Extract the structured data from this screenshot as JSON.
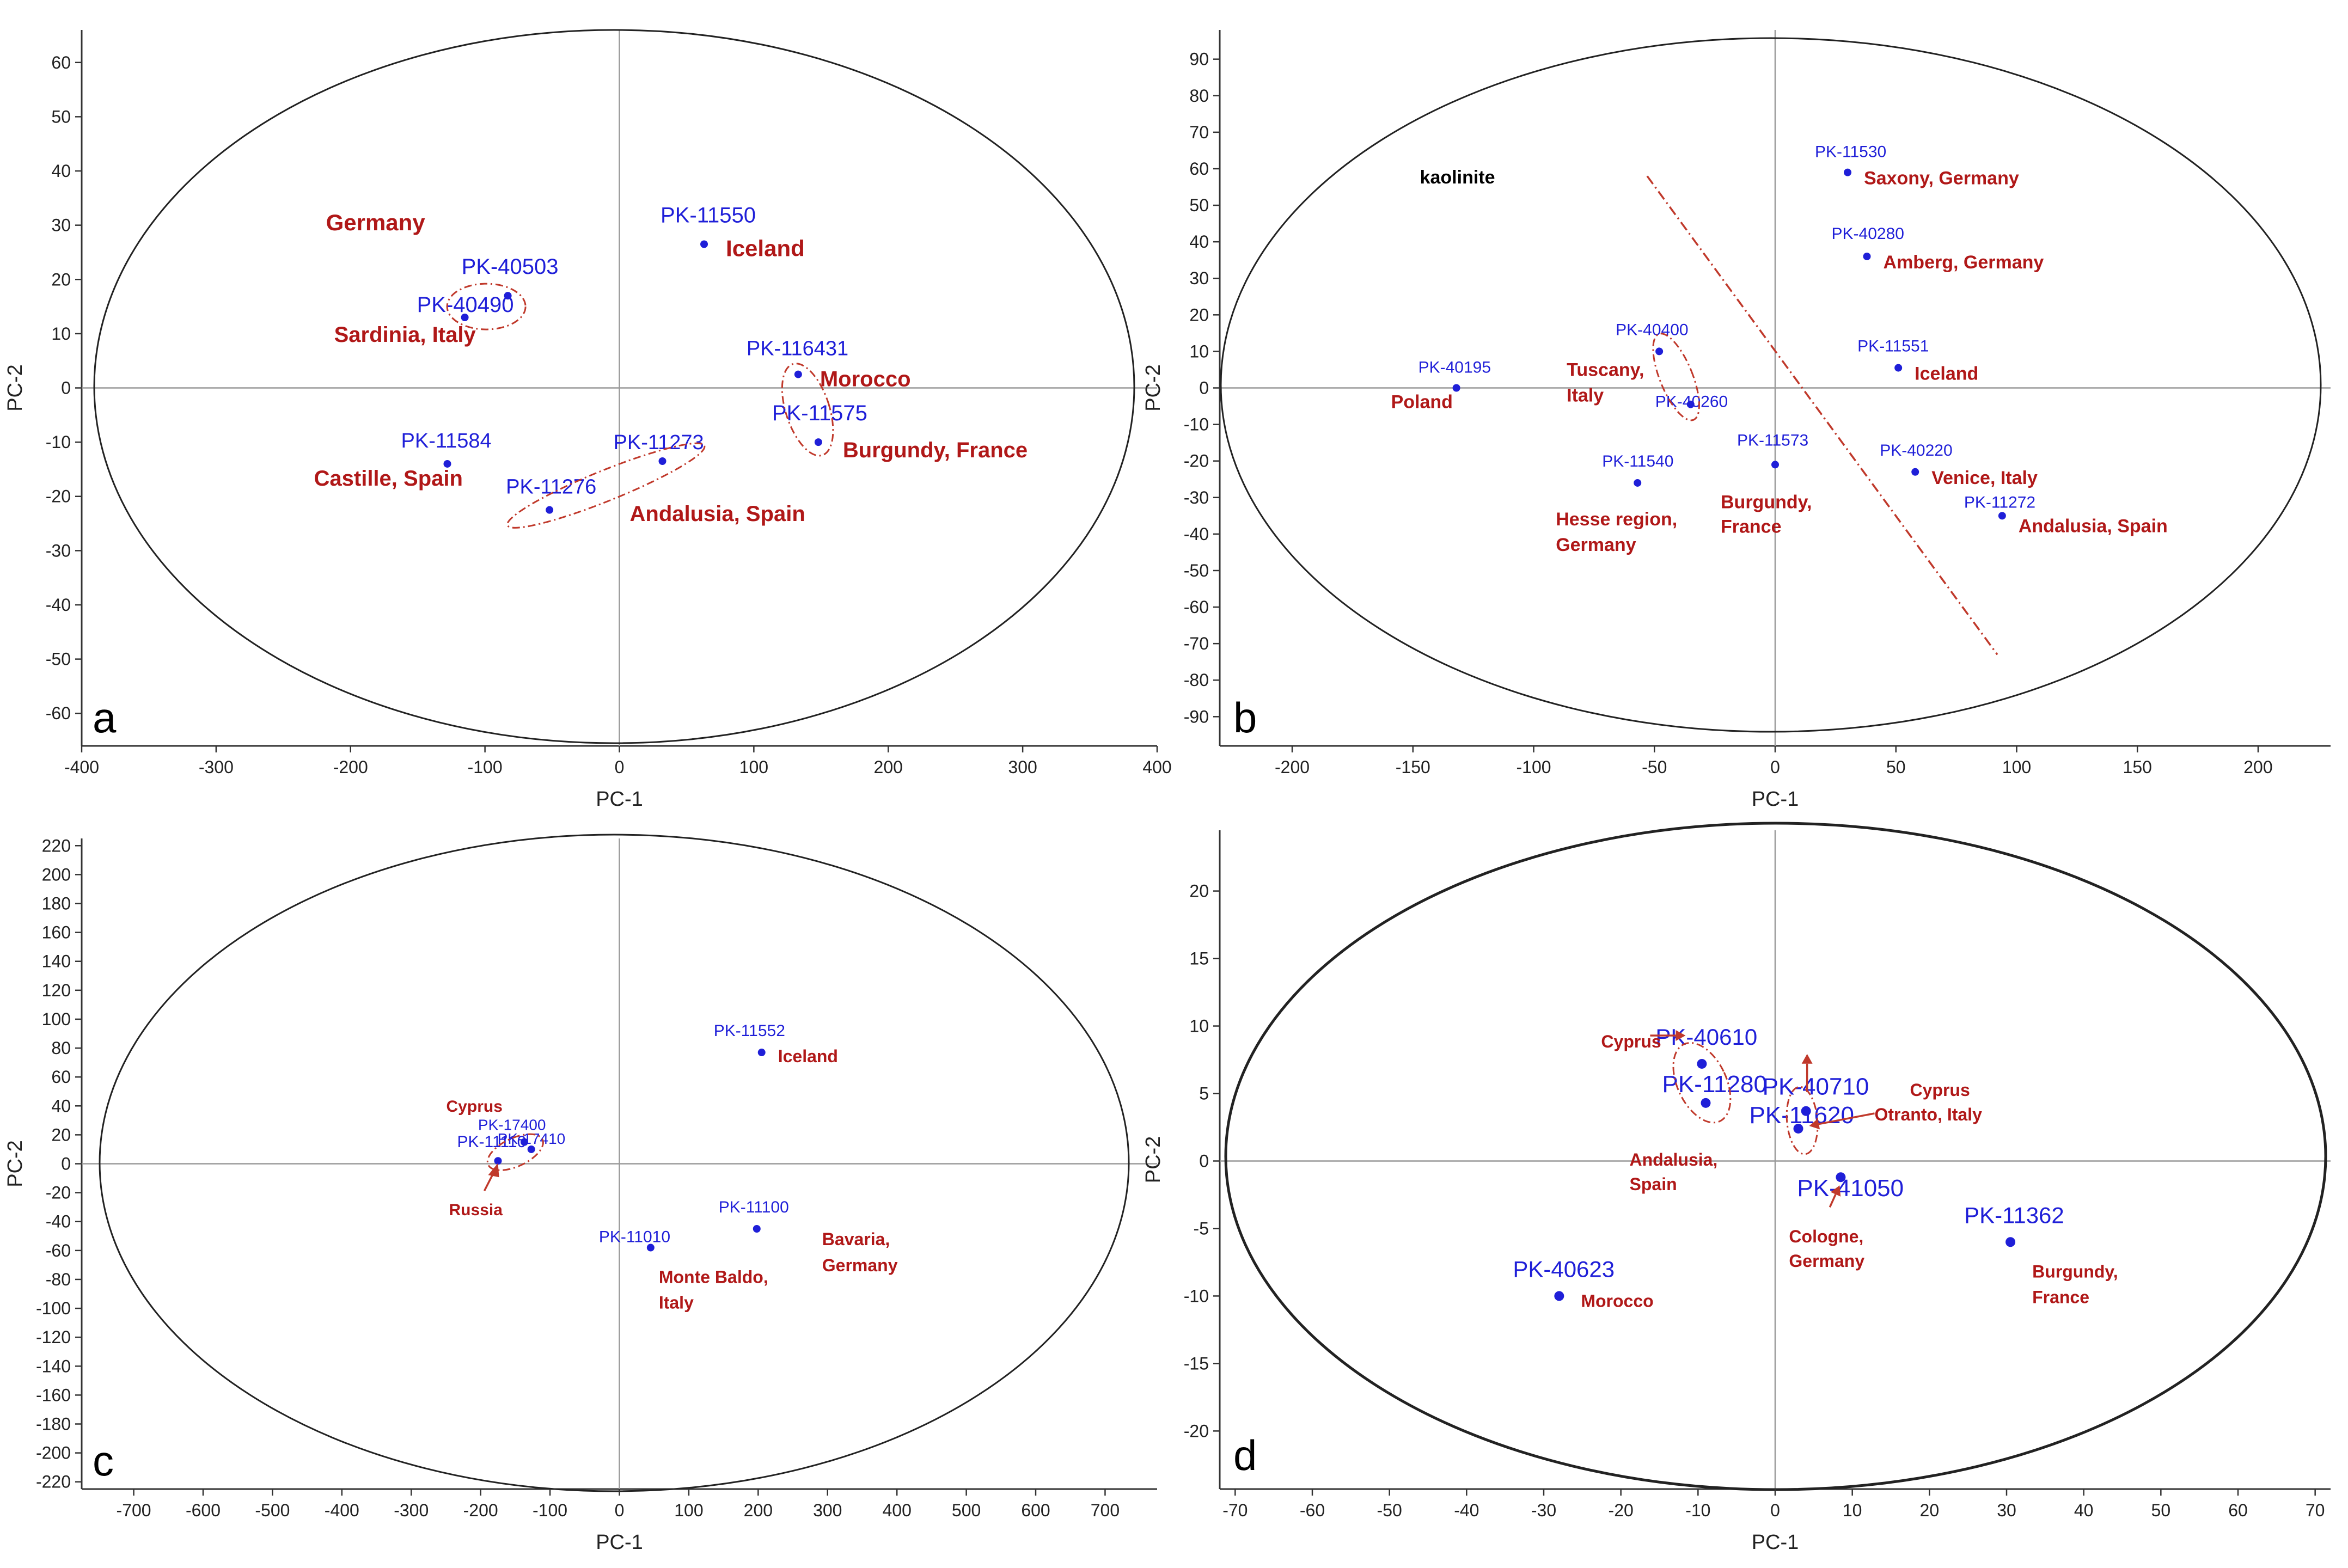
{
  "colors": {
    "sample": "#1f1fd8",
    "region": "#b01818",
    "axis": "#333333",
    "zero_line": "#9a9a9a",
    "ellipse": "#222222",
    "group": "#c0392b"
  },
  "chart_data": [
    {
      "panel": "a",
      "type": "scatter",
      "xlabel": "PC-1",
      "ylabel": "PC-2",
      "xlim": [
        -400,
        400
      ],
      "ylim": [
        -66,
        66
      ],
      "xticks": [
        -400,
        -300,
        -200,
        -100,
        0,
        100,
        200,
        300,
        400
      ],
      "yticks": [
        -60,
        -50,
        -40,
        -30,
        -20,
        -10,
        0,
        10,
        20,
        30,
        40,
        50,
        60
      ],
      "points": [
        {
          "id": "PK-11550",
          "x": 63,
          "y": 26.5
        },
        {
          "id": "PK-40503",
          "x": -83,
          "y": 17
        },
        {
          "id": "PK-40490",
          "x": -115,
          "y": 13
        },
        {
          "id": "PK-116431",
          "x": 133,
          "y": 2.5
        },
        {
          "id": "PK-11575",
          "x": 148,
          "y": -10
        },
        {
          "id": "PK-11584",
          "x": -128,
          "y": -14
        },
        {
          "id": "PK-11273",
          "x": 32,
          "y": -13.5
        },
        {
          "id": "PK-11276",
          "x": -52,
          "y": -22.5
        }
      ],
      "regions": [
        {
          "text": "Germany"
        },
        {
          "text": "Iceland"
        },
        {
          "text": "Sardinia, Italy"
        },
        {
          "text": "Morocco"
        },
        {
          "text": "Burgundy, France"
        },
        {
          "text": "Castille, Spain"
        },
        {
          "text": "Andalusia, Spain"
        }
      ]
    },
    {
      "panel": "b",
      "type": "scatter",
      "xlabel": "PC-1",
      "ylabel": "PC-2",
      "xlim": [
        -230,
        230
      ],
      "ylim": [
        -98,
        98
      ],
      "xticks": [
        -200,
        -150,
        -100,
        -50,
        0,
        50,
        100,
        150,
        200
      ],
      "yticks": [
        -90,
        -80,
        -70,
        -60,
        -50,
        -40,
        -30,
        -20,
        -10,
        0,
        10,
        20,
        30,
        40,
        50,
        60,
        70,
        80,
        90
      ],
      "points": [
        {
          "id": "PK-11530",
          "x": 30,
          "y": 59
        },
        {
          "id": "PK-40280",
          "x": 38,
          "y": 36
        },
        {
          "id": "PK-11551",
          "x": 51,
          "y": 5.5
        },
        {
          "id": "PK-40400",
          "x": -48,
          "y": 10
        },
        {
          "id": "PK-40195",
          "x": -132,
          "y": 0
        },
        {
          "id": "PK-40260",
          "x": -35,
          "y": -4.5
        },
        {
          "id": "PK-11540",
          "x": -57,
          "y": -26
        },
        {
          "id": "PK-11573",
          "x": 0,
          "y": -21
        },
        {
          "id": "PK-40220",
          "x": 58,
          "y": -23
        },
        {
          "id": "PK-11272",
          "x": 94,
          "y": -35
        }
      ],
      "regions": [
        {
          "text": "Saxony, Germany"
        },
        {
          "text": "Amberg, Germany"
        },
        {
          "text": "Iceland"
        },
        {
          "text": "Tuscany,"
        },
        {
          "text": "Italy"
        },
        {
          "text": "Poland"
        },
        {
          "text": "Hesse region,"
        },
        {
          "text": "Germany"
        },
        {
          "text": "Burgundy,"
        },
        {
          "text": "France"
        },
        {
          "text": "Venice, Italy"
        },
        {
          "text": "Andalusia, Spain"
        }
      ],
      "annotation": "kaolinite"
    },
    {
      "panel": "c",
      "type": "scatter",
      "xlabel": "PC-1",
      "ylabel": "PC-2",
      "xlim": [
        -775,
        775
      ],
      "ylim": [
        -225,
        225
      ],
      "xticks": [
        -700,
        -600,
        -500,
        -400,
        -300,
        -200,
        -100,
        0,
        100,
        200,
        300,
        400,
        500,
        600,
        700
      ],
      "yticks": [
        -220,
        -200,
        -180,
        -160,
        -140,
        -120,
        -100,
        -80,
        -60,
        -40,
        -20,
        0,
        20,
        40,
        60,
        80,
        100,
        120,
        140,
        160,
        180,
        200,
        220
      ],
      "points": [
        {
          "id": "PK-11552",
          "x": 205,
          "y": 77
        },
        {
          "id": "PK-17400",
          "x": -137,
          "y": 15
        },
        {
          "id": "PK-17410",
          "x": -127,
          "y": 10
        },
        {
          "id": "PK-11110",
          "x": -175,
          "y": 2
        },
        {
          "id": "PK-11100",
          "x": 198,
          "y": -45
        },
        {
          "id": "PK-11010",
          "x": 45,
          "y": -58
        }
      ],
      "regions": [
        {
          "text": "Iceland"
        },
        {
          "text": "Cyprus"
        },
        {
          "text": "Russia"
        },
        {
          "text": "Bavaria,"
        },
        {
          "text": "Germany"
        },
        {
          "text": "Monte Baldo,"
        },
        {
          "text": "Italy"
        }
      ]
    },
    {
      "panel": "d",
      "type": "scatter",
      "xlabel": "PC-1",
      "ylabel": "PC-2",
      "xlim": [
        -72,
        72
      ],
      "ylim": [
        -24.3,
        24.5
      ],
      "xticks": [
        -70,
        -60,
        -50,
        -40,
        -30,
        -20,
        -10,
        0,
        10,
        20,
        30,
        40,
        50,
        60,
        70
      ],
      "yticks": [
        -20,
        -15,
        -10,
        -5,
        0,
        5,
        10,
        15,
        20
      ],
      "points": [
        {
          "id": "PK-40610",
          "x": -9.5,
          "y": 7.2
        },
        {
          "id": "PK-11280",
          "x": -9,
          "y": 4.3
        },
        {
          "id": "PK-40710",
          "x": 4,
          "y": 3.7
        },
        {
          "id": "PK-11620",
          "x": 3,
          "y": 2.4
        },
        {
          "id": "PK-41050",
          "x": 8.5,
          "y": -1.2
        },
        {
          "id": "PK-11362",
          "x": 30.5,
          "y": -6
        },
        {
          "id": "PK-40623",
          "x": -28,
          "y": -10
        }
      ],
      "regions": [
        {
          "text": "Cyprus"
        },
        {
          "text": "Cyprus"
        },
        {
          "text": "Andalusia,"
        },
        {
          "text": "Spain"
        },
        {
          "text": "Otranto, Italy"
        },
        {
          "text": "Cologne,"
        },
        {
          "text": "Germany"
        },
        {
          "text": "Burgundy,"
        },
        {
          "text": "France"
        },
        {
          "text": "Morocco"
        }
      ]
    }
  ]
}
